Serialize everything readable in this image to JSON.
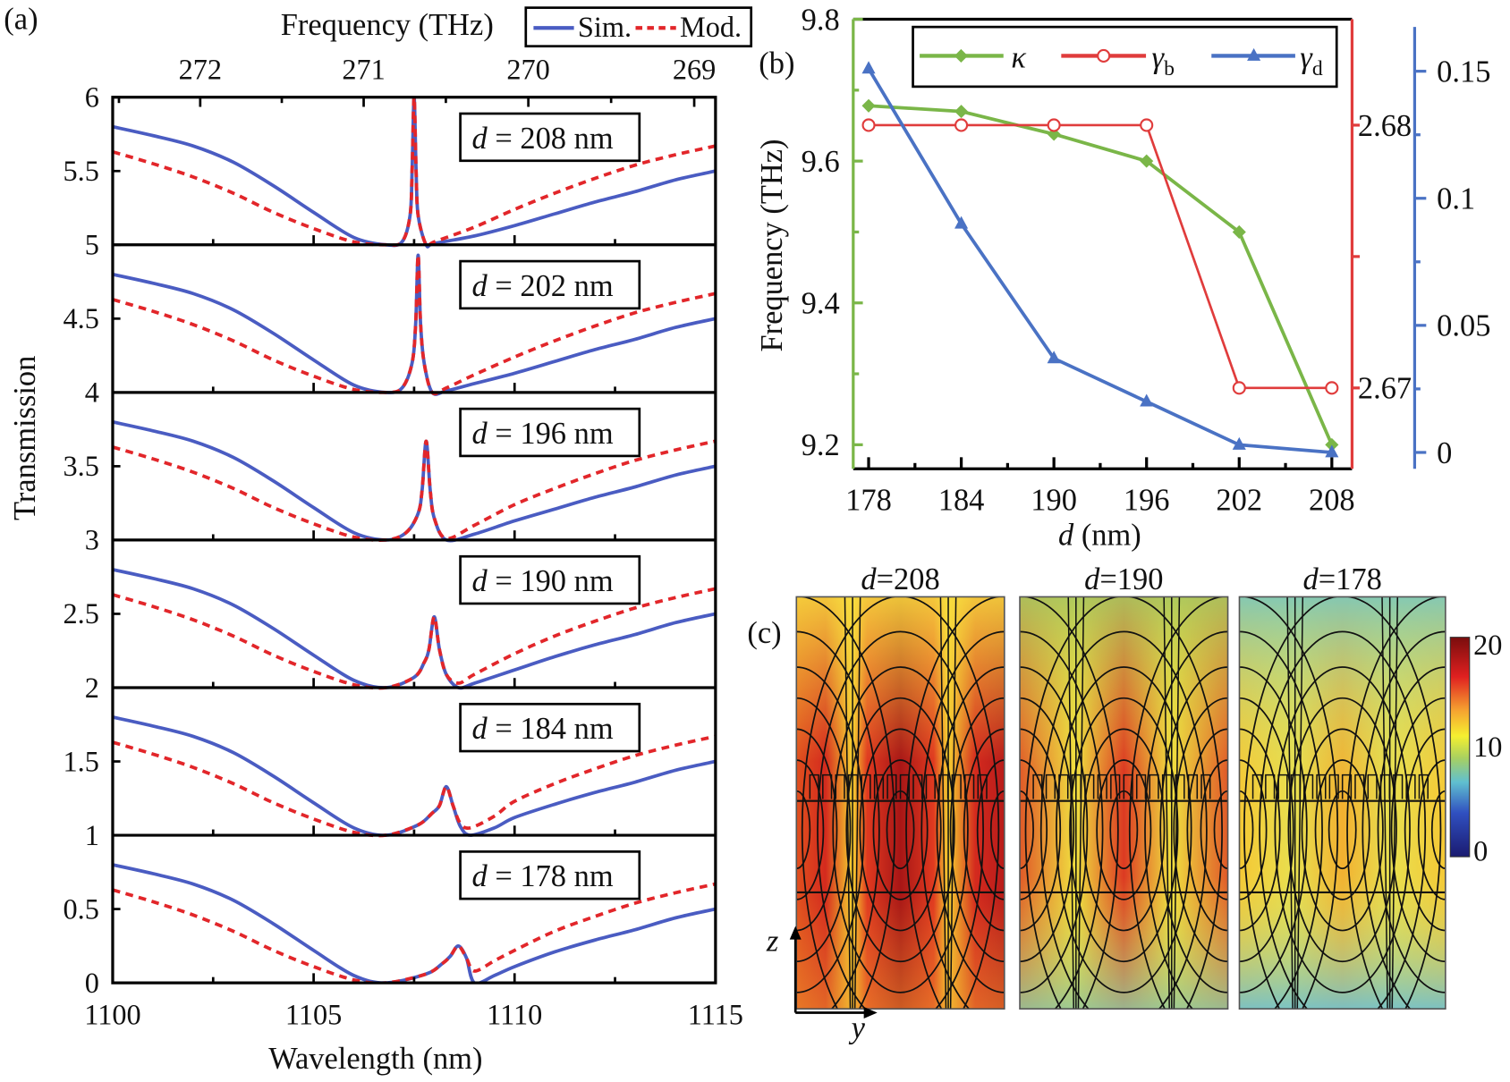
{
  "chart_data": [
    {
      "panel_label": "(a)",
      "type": "line",
      "xlabel": "Wavelength (nm)",
      "ylabel": "Transmission",
      "top_xlabel": "Frequency (THz)",
      "xlim": [
        1100,
        1115
      ],
      "ylim": [
        0,
        6
      ],
      "x_ticks": [
        "1100",
        "1105",
        "1110",
        "1115"
      ],
      "y_ticks": [
        "0",
        "0.5",
        "1",
        "1.5",
        "2",
        "2.5",
        "3",
        "3.5",
        "4",
        "4.5",
        "5",
        "5.5",
        "6"
      ],
      "top_ticks": [
        "272",
        "271",
        "270",
        "269"
      ],
      "legend": {
        "placement": "top-right",
        "entries": [
          "Sim.",
          "Mod."
        ]
      },
      "colors": {
        "sim": "#4a5cc2",
        "mod": "#e2262a"
      },
      "note": "Each panel is stacked with an offset of 1 (panel k spans k..k+1)",
      "panels": [
        {
          "label_var": "d",
          "label_rest": " = 178 nm",
          "offset": 0,
          "x": [
            1100,
            1101,
            1102,
            1103,
            1104,
            1105,
            1106,
            1106.8,
            1107.8,
            1108.2,
            1108.4,
            1108.6,
            1108.8,
            1109.0,
            1109.5,
            1110,
            1111,
            1112,
            1113,
            1114,
            1115
          ],
          "sim": [
            0.8,
            0.74,
            0.67,
            0.56,
            0.4,
            0.22,
            0.05,
            0.0,
            0.06,
            0.13,
            0.18,
            0.25,
            0.17,
            0.0,
            0.05,
            0.11,
            0.21,
            0.29,
            0.36,
            0.44,
            0.5
          ],
          "mod": [
            0.63,
            0.55,
            0.46,
            0.35,
            0.22,
            0.11,
            0.02,
            0.0,
            0.06,
            0.13,
            0.18,
            0.25,
            0.17,
            0.08,
            0.15,
            0.22,
            0.35,
            0.45,
            0.54,
            0.61,
            0.67
          ]
        },
        {
          "label_var": "d",
          "label_rest": " = 184 nm",
          "offset": 1,
          "x": [
            1100,
            1101,
            1102,
            1103,
            1104,
            1105,
            1106,
            1106.8,
            1107.6,
            1107.95,
            1108.13,
            1108.3,
            1108.47,
            1108.65,
            1108.9,
            1109.5,
            1110,
            1111,
            1112,
            1113,
            1114,
            1115
          ],
          "sim": [
            0.8,
            0.74,
            0.67,
            0.56,
            0.4,
            0.22,
            0.05,
            0.0,
            0.07,
            0.15,
            0.2,
            0.33,
            0.2,
            0.06,
            0.0,
            0.05,
            0.12,
            0.21,
            0.29,
            0.36,
            0.44,
            0.5
          ],
          "mod": [
            0.63,
            0.55,
            0.46,
            0.35,
            0.22,
            0.11,
            0.02,
            0.0,
            0.07,
            0.15,
            0.2,
            0.33,
            0.2,
            0.08,
            0.05,
            0.13,
            0.23,
            0.35,
            0.45,
            0.54,
            0.61,
            0.67
          ]
        },
        {
          "label_var": "d",
          "label_rest": " = 190 nm",
          "offset": 2,
          "x": [
            1100,
            1101,
            1102,
            1103,
            1104,
            1105,
            1106,
            1106.8,
            1107.5,
            1107.75,
            1107.87,
            1108.0,
            1108.13,
            1108.3,
            1108.6,
            1109,
            1110,
            1111,
            1112,
            1113,
            1114,
            1115
          ],
          "sim": [
            0.8,
            0.74,
            0.67,
            0.56,
            0.4,
            0.22,
            0.05,
            0.0,
            0.07,
            0.17,
            0.26,
            0.48,
            0.26,
            0.09,
            0.0,
            0.03,
            0.12,
            0.21,
            0.29,
            0.36,
            0.44,
            0.5
          ],
          "mod": [
            0.63,
            0.55,
            0.46,
            0.35,
            0.22,
            0.11,
            0.02,
            0.0,
            0.07,
            0.17,
            0.26,
            0.48,
            0.26,
            0.09,
            0.03,
            0.09,
            0.23,
            0.35,
            0.45,
            0.54,
            0.61,
            0.67
          ]
        },
        {
          "label_var": "d",
          "label_rest": " = 196 nm",
          "offset": 3,
          "x": [
            1100,
            1101,
            1102,
            1103,
            1104,
            1105,
            1106,
            1106.8,
            1107.3,
            1107.6,
            1107.7,
            1107.8,
            1107.9,
            1108.0,
            1108.3,
            1109,
            1110,
            1111,
            1112,
            1113,
            1114,
            1115
          ],
          "sim": [
            0.8,
            0.74,
            0.67,
            0.56,
            0.4,
            0.22,
            0.05,
            0.0,
            0.05,
            0.18,
            0.34,
            0.67,
            0.34,
            0.15,
            0.0,
            0.04,
            0.13,
            0.21,
            0.29,
            0.36,
            0.44,
            0.5
          ],
          "mod": [
            0.63,
            0.55,
            0.46,
            0.35,
            0.22,
            0.11,
            0.02,
            0.0,
            0.05,
            0.18,
            0.34,
            0.67,
            0.34,
            0.15,
            0.01,
            0.1,
            0.24,
            0.35,
            0.45,
            0.54,
            0.61,
            0.67
          ]
        },
        {
          "label_var": "d",
          "label_rest": " = 202 nm",
          "offset": 4,
          "x": [
            1100,
            1101,
            1102,
            1103,
            1104,
            1105,
            1106,
            1106.8,
            1107.2,
            1107.45,
            1107.54,
            1107.6,
            1107.66,
            1107.75,
            1107.95,
            1108.3,
            1109,
            1110,
            1111,
            1112,
            1113,
            1114,
            1115
          ],
          "sim": [
            0.8,
            0.74,
            0.67,
            0.56,
            0.4,
            0.22,
            0.05,
            0.0,
            0.03,
            0.2,
            0.47,
            0.93,
            0.47,
            0.2,
            0.0,
            0.01,
            0.06,
            0.13,
            0.21,
            0.29,
            0.36,
            0.44,
            0.5
          ],
          "mod": [
            0.63,
            0.55,
            0.46,
            0.35,
            0.22,
            0.11,
            0.02,
            0.0,
            0.03,
            0.2,
            0.47,
            0.93,
            0.47,
            0.2,
            0.0,
            0.03,
            0.12,
            0.24,
            0.35,
            0.45,
            0.54,
            0.61,
            0.67
          ]
        },
        {
          "label_var": "d",
          "label_rest": " = 208 nm",
          "offset": 5,
          "x": [
            1100,
            1101,
            1102,
            1103,
            1104,
            1105,
            1106,
            1106.8,
            1107.2,
            1107.4,
            1107.45,
            1107.5,
            1107.55,
            1107.6,
            1107.8,
            1108.0,
            1109,
            1110,
            1111,
            1112,
            1113,
            1114,
            1115
          ],
          "sim": [
            0.8,
            0.74,
            0.67,
            0.56,
            0.4,
            0.22,
            0.05,
            0.0,
            0.02,
            0.2,
            0.5,
            1.0,
            0.5,
            0.2,
            0.0,
            0.01,
            0.06,
            0.13,
            0.21,
            0.29,
            0.36,
            0.44,
            0.5
          ],
          "mod": [
            0.63,
            0.55,
            0.46,
            0.35,
            0.22,
            0.11,
            0.02,
            0.0,
            0.02,
            0.2,
            0.5,
            1.0,
            0.5,
            0.2,
            0.0,
            0.02,
            0.12,
            0.24,
            0.35,
            0.45,
            0.54,
            0.61,
            0.67
          ]
        }
      ]
    },
    {
      "panel_label": "(b)",
      "type": "line",
      "xlabel_var": "d",
      "xlabel_rest": " (nm)",
      "ylabel": "Frequency (THz)",
      "x": [
        178,
        184,
        190,
        196,
        202,
        208
      ],
      "x_ticks": [
        "178",
        "184",
        "190",
        "196",
        "202",
        "208"
      ],
      "left_axis": {
        "ylim": [
          9.18,
          9.8
        ],
        "ticks": [
          "9.8",
          "9.6",
          "9.4",
          "9.2"
        ],
        "color": "#7ab648"
      },
      "right_axis_red": {
        "ylim": [
          2.6665,
          2.684
        ],
        "ticks": [
          "2.68",
          "2.67"
        ],
        "color": "#e03c3c"
      },
      "right_axis_blue": {
        "ylim": [
          -0.004,
          0.17
        ],
        "ticks": [
          "0.15",
          "0.1",
          "0.05",
          "0"
        ],
        "color": "#4a72c4"
      },
      "legend": {
        "placement": "top"
      },
      "series": [
        {
          "name": "κ",
          "sub": "",
          "axis": "left",
          "marker": "diamond",
          "color": "#7ab648",
          "values": [
            9.678,
            9.67,
            9.638,
            9.6,
            9.5,
            9.2
          ]
        },
        {
          "name": "γ",
          "sub": "b",
          "axis": "right_red",
          "marker": "open-circle",
          "color": "#e03c3c",
          "values": [
            2.68,
            2.68,
            2.68,
            2.68,
            2.67,
            2.67
          ]
        },
        {
          "name": "γ",
          "sub": "d",
          "axis": "right_blue",
          "marker": "triangle",
          "color": "#4a72c4",
          "values": [
            0.151,
            0.09,
            0.037,
            0.02,
            0.003,
            0.0
          ]
        }
      ]
    },
    {
      "panel_label": "(c)",
      "type": "heatmap",
      "maps": [
        {
          "title_var": "d",
          "title_rest": "=208"
        },
        {
          "title_var": "d",
          "title_rest": "=190"
        },
        {
          "title_var": "d",
          "title_rest": "=178"
        }
      ],
      "colorbar": {
        "ticks": [
          "20",
          "10",
          "0"
        ],
        "range": [
          0,
          20
        ]
      },
      "axes": {
        "vertical": "z",
        "horizontal": "y"
      }
    }
  ]
}
